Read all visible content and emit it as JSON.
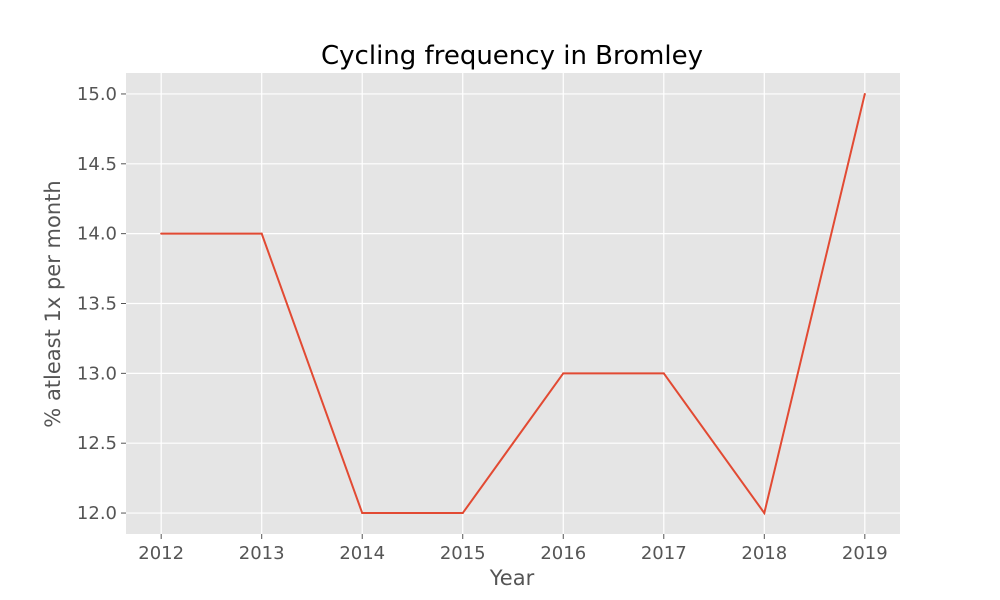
{
  "chart_data": {
    "type": "line",
    "title": "Cycling frequency in Bromley",
    "xlabel": "Year",
    "ylabel": "% atleast 1x per month",
    "x": [
      2012,
      2013,
      2014,
      2015,
      2016,
      2017,
      2018,
      2019
    ],
    "series": [
      {
        "values": [
          14.0,
          14.0,
          12.0,
          12.0,
          13.0,
          13.0,
          12.0,
          15.0
        ]
      }
    ],
    "xlim": [
      2011.65,
      2019.35
    ],
    "ylim": [
      11.85,
      15.15
    ],
    "xticks": [
      "2012",
      "2013",
      "2014",
      "2015",
      "2016",
      "2017",
      "2018",
      "2019"
    ],
    "yticks": [
      "12.0",
      "12.5",
      "13.0",
      "13.5",
      "14.0",
      "14.5",
      "15.0"
    ],
    "grid": true,
    "colors": {
      "plot_background": "#e5e5e5",
      "grid": "#ffffff",
      "line": "#e24a33"
    }
  }
}
